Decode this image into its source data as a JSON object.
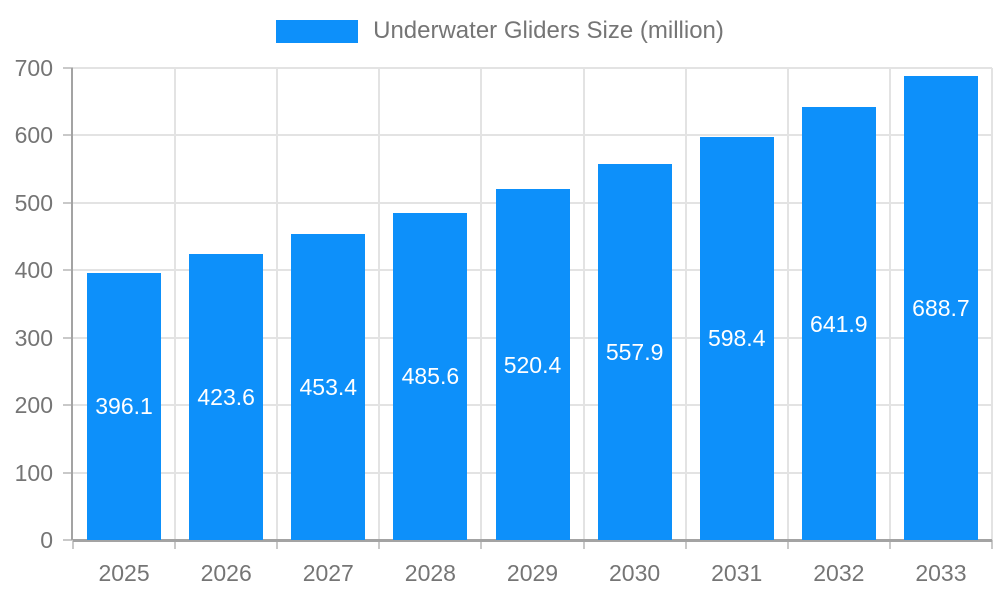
{
  "legend": {
    "label": "Underwater Gliders Size (million)"
  },
  "chart_data": {
    "type": "bar",
    "title": "",
    "legend_label": "Underwater Gliders Size (million)",
    "legend_position": "top",
    "categories": [
      "2025",
      "2026",
      "2027",
      "2028",
      "2029",
      "2030",
      "2031",
      "2032",
      "2033"
    ],
    "values": [
      396.1,
      423.6,
      453.4,
      485.6,
      520.4,
      557.9,
      598.4,
      641.9,
      688.7
    ],
    "xlabel": "",
    "ylabel": "",
    "ylim": [
      0,
      700
    ],
    "ytick_step": 100,
    "grid": true,
    "colors": {
      "bar": "#0d90fa",
      "bar_value_text": "#ffffff",
      "axis_text": "#757575",
      "gridline": "#e3e3e3",
      "axis_line": "#a3a3a3",
      "background": "#ffffff"
    }
  }
}
